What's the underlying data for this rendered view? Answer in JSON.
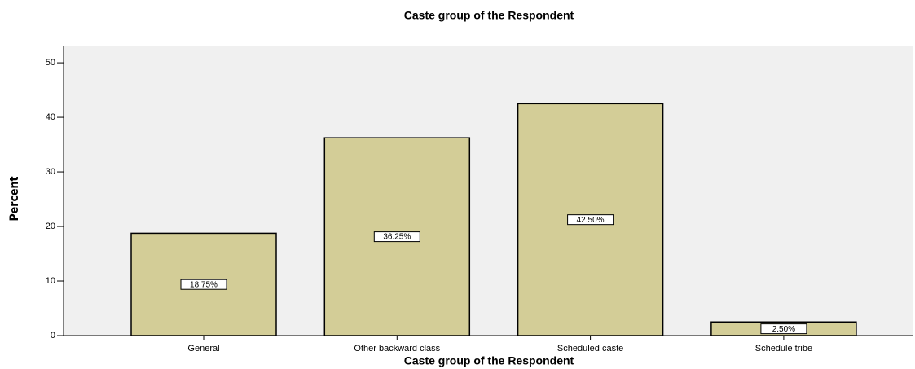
{
  "chart_data": {
    "type": "bar",
    "title": "Caste group of the Respondent",
    "x_label": "Caste group of the Respondent",
    "y_label": "Percent",
    "categories": [
      "General",
      "Other backward class",
      "Scheduled caste",
      "Schedule tribe"
    ],
    "values": [
      18.75,
      36.25,
      42.5,
      2.5
    ],
    "value_labels": [
      "18.75%",
      "36.25%",
      "42.50%",
      "2.50%"
    ],
    "color": "#d3cd97",
    "ylim": [
      0,
      53
    ],
    "yticks": [
      0,
      10,
      20,
      30,
      40,
      50
    ],
    "grid": false
  }
}
